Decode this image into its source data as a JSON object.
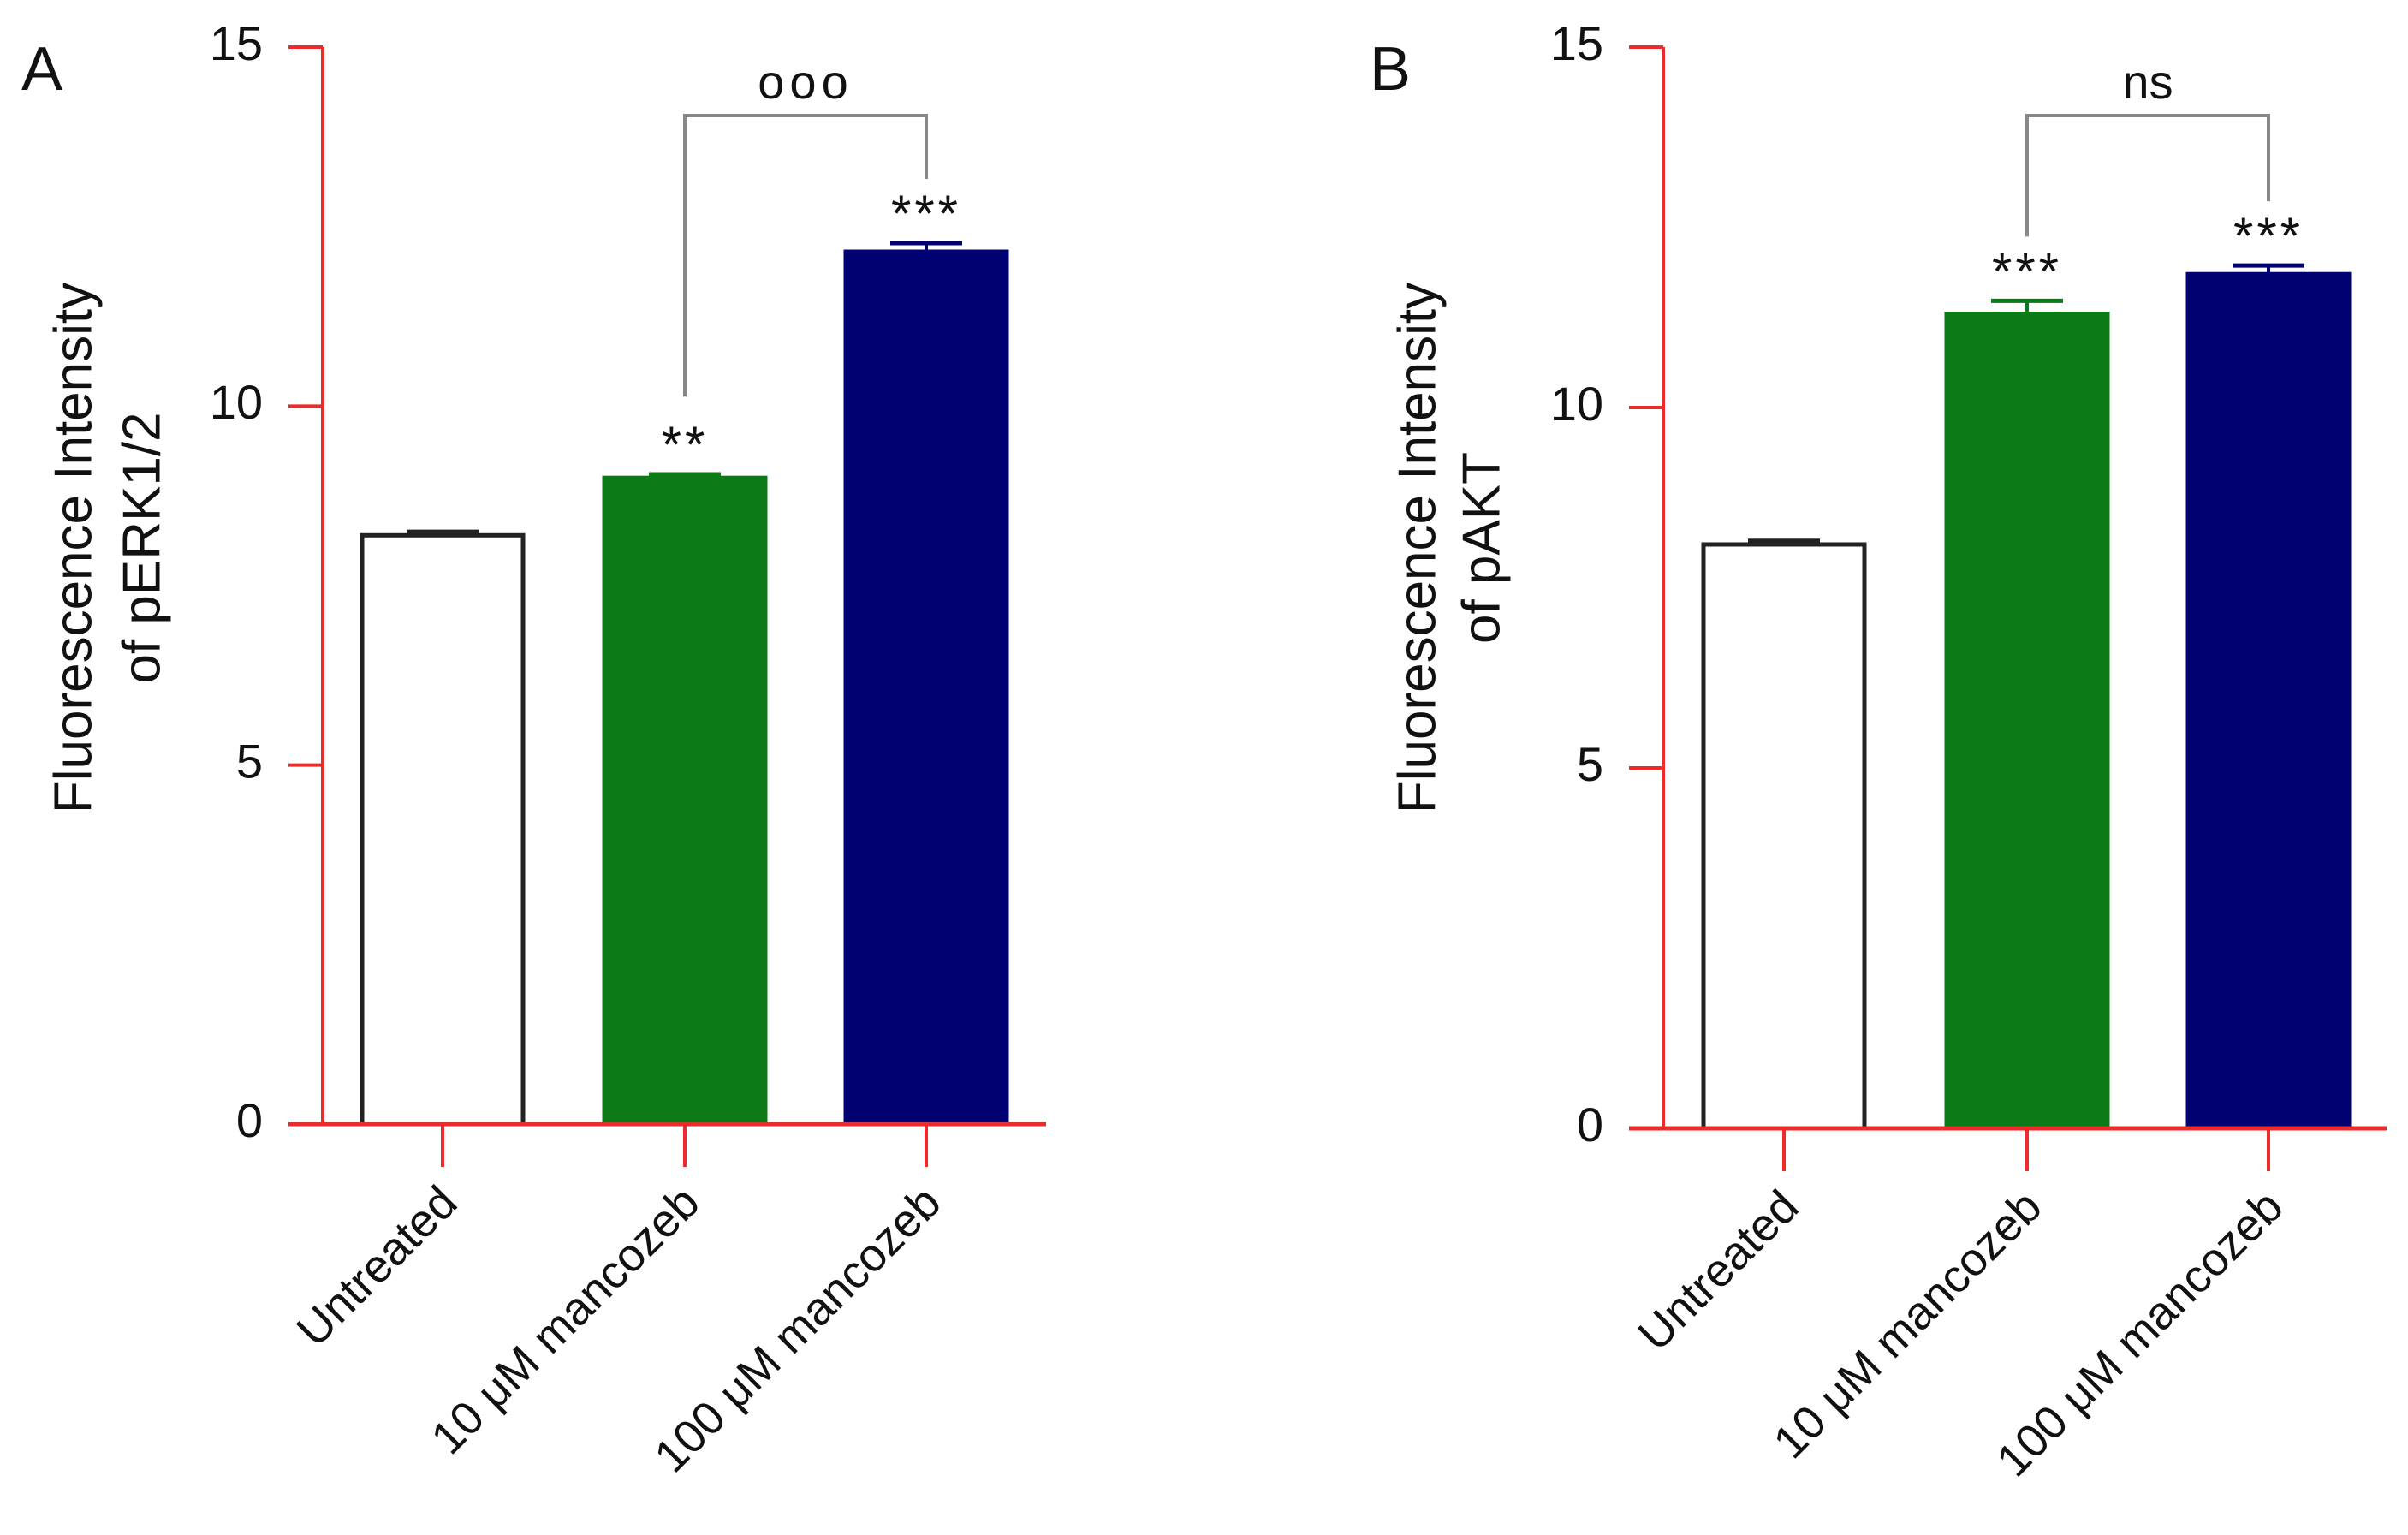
{
  "chart_data": [
    {
      "type": "bar",
      "panel_label": "A",
      "title": "",
      "ylabel": [
        "Fluorescence Intensity",
        "of pERK1/2"
      ],
      "xlabel": "",
      "ylim": [
        0,
        15
      ],
      "yticks": [
        0,
        5,
        10,
        15
      ],
      "ytick_labels": [
        "0",
        "5",
        "10",
        "15"
      ],
      "grid": false,
      "categories": [
        "Untreated",
        "10 μM mancozeb",
        "100 μM mancozeb"
      ],
      "values": [
        8.2,
        9.0,
        12.15
      ],
      "errors": [
        0.05,
        0.05,
        0.12
      ],
      "colors": [
        "#ffffff",
        "#0b7a17",
        "#010172"
      ],
      "significance": [
        "",
        "**",
        "***"
      ],
      "comparison": {
        "from": 1,
        "to": 2,
        "label": "ooo"
      }
    },
    {
      "type": "bar",
      "panel_label": "B",
      "title": "",
      "ylabel": [
        "Fluorescence Intensity",
        "of pAKT"
      ],
      "xlabel": "",
      "ylim": [
        0,
        15
      ],
      "yticks": [
        0,
        5,
        10,
        15
      ],
      "ytick_labels": [
        "0",
        "5",
        "10",
        "15"
      ],
      "grid": false,
      "categories": [
        "Untreated",
        "10 μM mancozeb",
        "100 μM mancozeb"
      ],
      "values": [
        8.1,
        11.3,
        11.85
      ],
      "errors": [
        0.05,
        0.18,
        0.12
      ],
      "colors": [
        "#ffffff",
        "#0b7a17",
        "#010172"
      ],
      "significance": [
        "",
        "***",
        "***"
      ],
      "comparison": {
        "from": 1,
        "to": 2,
        "label": "ns"
      }
    }
  ],
  "colors": {
    "axis": "#ee2a2a",
    "bar_outline": "#222222",
    "bracket": "#888888"
  }
}
